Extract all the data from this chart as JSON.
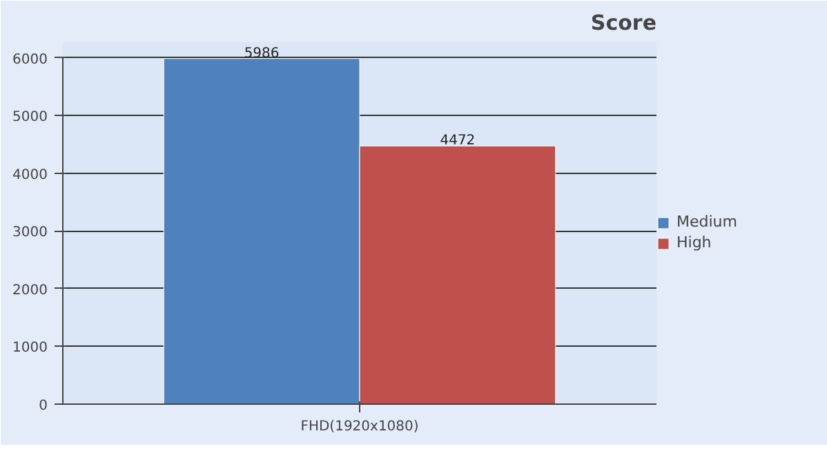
{
  "chart_data": {
    "type": "bar",
    "title": "Score",
    "categories": [
      "FHD(1920x1080)"
    ],
    "series": [
      {
        "name": "Medium",
        "color": "#4f81bd",
        "values": [
          5986
        ]
      },
      {
        "name": "High",
        "color": "#c0504d",
        "values": [
          4472
        ]
      }
    ],
    "ylim": [
      0,
      6000
    ],
    "yticks": [
      0,
      1000,
      2000,
      3000,
      4000,
      5000,
      6000
    ],
    "grid": "y",
    "legend": "right",
    "data_labels": true
  }
}
